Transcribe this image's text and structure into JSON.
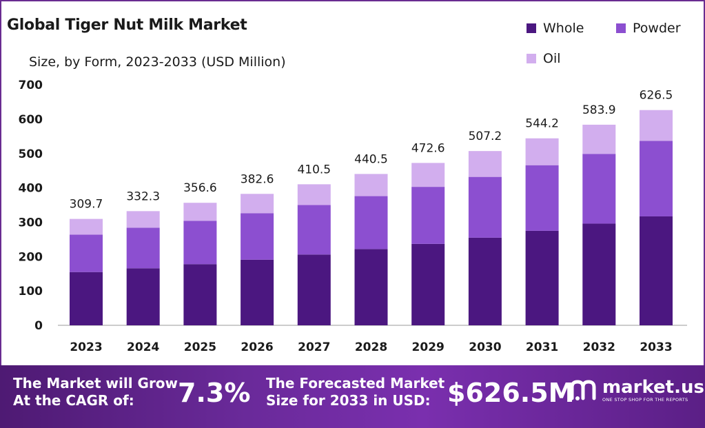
{
  "header": {
    "title": "Global Tiger Nut Milk Market",
    "subtitle": "Size, by Form, 2023-2033 (USD Million)"
  },
  "legend": [
    {
      "label": "Whole",
      "color": "#4b1780"
    },
    {
      "label": "Powder",
      "color": "#8c4fd0"
    },
    {
      "label": "Oil",
      "color": "#d2aeee"
    }
  ],
  "chart_data": {
    "type": "bar",
    "stacked": true,
    "title": "Global Tiger Nut Milk Market",
    "subtitle": "Size, by Form, 2023-2033 (USD Million)",
    "categories": [
      "2023",
      "2024",
      "2025",
      "2026",
      "2027",
      "2028",
      "2029",
      "2030",
      "2031",
      "2032",
      "2033"
    ],
    "series": [
      {
        "name": "Whole",
        "color": "#4b1780",
        "values": [
          155,
          166,
          178,
          191,
          206,
          222,
          237,
          255,
          275,
          296,
          317
        ]
      },
      {
        "name": "Powder",
        "color": "#8c4fd0",
        "values": [
          109,
          118,
          126,
          135,
          144,
          154,
          166,
          177,
          191,
          203,
          220
        ]
      },
      {
        "name": "Oil",
        "color": "#d2aeee",
        "values": [
          45.7,
          48.3,
          52.6,
          56.6,
          60.5,
          64.5,
          69.6,
          75.2,
          78.2,
          84.9,
          89.5
        ]
      }
    ],
    "totals": [
      "309.7",
      "332.3",
      "356.6",
      "382.6",
      "410.5",
      "440.5",
      "472.6",
      "507.2",
      "544.2",
      "583.9",
      "626.5"
    ],
    "yticks": [
      "0",
      "100",
      "200",
      "300",
      "400",
      "500",
      "600",
      "700"
    ],
    "ylim": [
      0,
      700
    ],
    "legend_position": "top-right",
    "grid": false
  },
  "footer": {
    "cagr_text_line1": "The Market will Grow",
    "cagr_text_line2": "At the CAGR of:",
    "cagr_value": "7.3%",
    "forecast_text_line1": "The Forecasted Market",
    "forecast_text_line2": "Size for 2033 in USD:",
    "forecast_value": "$626.5M",
    "brand_name": "market.us",
    "brand_tagline": "ONE STOP SHOP FOR THE REPORTS"
  }
}
